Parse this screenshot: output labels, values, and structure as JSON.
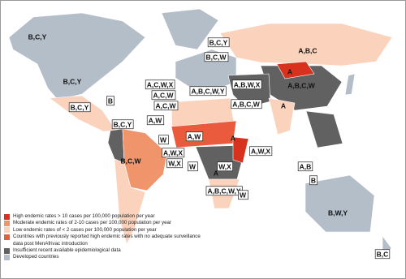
{
  "map_labels": [
    "B,C,Y",
    "B,C,Y",
    "A,B,C",
    "B,C,W",
    "B,C,Y",
    "A,C,W,X",
    "A,B,C,W",
    "B,C,Y",
    "B",
    "A,C,W",
    "A,C,W",
    "A,B,C,W,Y",
    "A,B,W,X",
    "A,B,C,W",
    "A",
    "A",
    "A,W",
    "W",
    "A,W",
    "A,W,X",
    "W,X",
    "W",
    "A,W,X",
    "W,X",
    "A",
    "A",
    "A,B",
    "B",
    "B,C,Y",
    "B,C,W",
    "A,B,C,W,Y",
    "W",
    "B,W,Y",
    "B,C"
  ],
  "legend": [
    {
      "color": "#d8321f",
      "label": "High endemic rates > 10 cases per 100,000 population per year"
    },
    {
      "color": "#f0946c",
      "label": "Moderate endemic rates of 2-10 cases per 100,000 population per year"
    },
    {
      "color": "#fbd3bd",
      "label": "Low endemic rates of < 2 cases per 100,000 population per year"
    },
    {
      "color": "#ea5a3c",
      "label": "Countries with previously reported high endemic rates with no adequate surveillance data post MenAfrivac introduction"
    },
    {
      "color": "#616161",
      "label": "Insufficient recent available epidemiological data"
    },
    {
      "color": "#b4bec9",
      "label": "Developed countries"
    }
  ]
}
